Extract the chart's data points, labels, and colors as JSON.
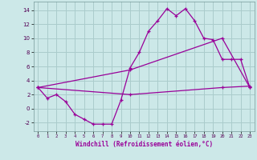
{
  "background_color": "#cce8e8",
  "grid_color": "#aacccc",
  "line_color": "#990099",
  "marker": "+",
  "xlabel": "Windchill (Refroidissement éolien,°C)",
  "xlim": [
    -0.5,
    23.5
  ],
  "ylim": [
    -3.2,
    15.2
  ],
  "yticks": [
    -2,
    0,
    2,
    4,
    6,
    8,
    10,
    12,
    14
  ],
  "xticks": [
    0,
    1,
    2,
    3,
    4,
    5,
    6,
    7,
    8,
    9,
    10,
    11,
    12,
    13,
    14,
    15,
    16,
    17,
    18,
    19,
    20,
    21,
    22,
    23
  ],
  "series1_x": [
    0,
    1,
    2,
    3,
    4,
    5,
    6,
    7,
    8,
    9,
    10,
    11,
    12,
    13,
    14,
    15,
    16,
    17,
    18,
    19,
    20,
    21,
    22,
    23
  ],
  "series1_y": [
    3.0,
    1.5,
    2.0,
    1.0,
    -0.8,
    -1.5,
    -2.2,
    -2.2,
    -2.2,
    1.2,
    5.8,
    8.0,
    11.0,
    12.5,
    14.2,
    13.2,
    14.2,
    12.5,
    10.0,
    9.8,
    7.0,
    7.0,
    7.0,
    3.0
  ],
  "series2_x": [
    0,
    10,
    20,
    23
  ],
  "series2_y": [
    3.0,
    5.5,
    10.0,
    3.0
  ],
  "series3_x": [
    0,
    10,
    20,
    23
  ],
  "series3_y": [
    3.0,
    2.0,
    3.0,
    3.2
  ]
}
